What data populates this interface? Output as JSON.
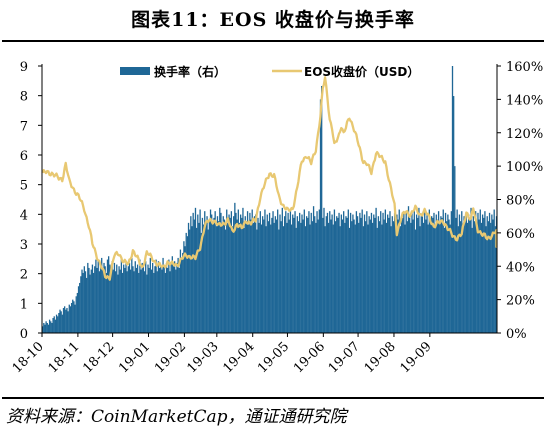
{
  "title": "图表11：EOS 收盘价与换手率",
  "source": "资料来源：CoinMarketCap，通证通研究院",
  "chart_data": {
    "type": "bar+line",
    "title": "图表11：EOS 收盘价与换手率",
    "x_tick_labels": [
      "18-10",
      "18-11",
      "18-12",
      "19-01",
      "19-02",
      "19-03",
      "19-04",
      "19-05",
      "19-06",
      "19-07",
      "19-08",
      "19-09"
    ],
    "left_axis": {
      "ticks": [
        "0",
        "1",
        "2",
        "3",
        "4",
        "5",
        "6",
        "7",
        "8",
        "9"
      ],
      "ylim": [
        0,
        9
      ]
    },
    "right_axis": {
      "ticks": [
        "0%",
        "20%",
        "40%",
        "60%",
        "80%",
        "100%",
        "120%",
        "140%",
        "160%"
      ],
      "ylim": [
        0,
        160
      ]
    },
    "legend_position": "top",
    "grid": false,
    "series": [
      {
        "name": "换手率（右）",
        "type": "bar",
        "axis": "right",
        "color": "#1f6796",
        "unit": "%",
        "monthly_start_index": [
          0,
          31,
          61,
          92,
          123,
          151,
          182,
          212,
          243,
          273,
          304,
          335
        ],
        "values": [
          4,
          6,
          5,
          7,
          6,
          5,
          8,
          7,
          6,
          9,
          10,
          8,
          11,
          10,
          12,
          14,
          13,
          11,
          15,
          16,
          14,
          15,
          13,
          17,
          16,
          18,
          20,
          19,
          17,
          22,
          24,
          28,
          30,
          34,
          38,
          36,
          40,
          37,
          33,
          42,
          39,
          35,
          38,
          41,
          36,
          40,
          44,
          39,
          43,
          37,
          41,
          45,
          38,
          42,
          40,
          36,
          44,
          46,
          41,
          39,
          43,
          38,
          42,
          37,
          41,
          35,
          40,
          38,
          44,
          36,
          41,
          39,
          43,
          37,
          40,
          42,
          38,
          45,
          40,
          37,
          43,
          39,
          41,
          36,
          44,
          38,
          42,
          40,
          37,
          43,
          35,
          41,
          39,
          45,
          38,
          42,
          36,
          40,
          44,
          37,
          43,
          39,
          41,
          38,
          45,
          40,
          36,
          42,
          39,
          44,
          37,
          41,
          46,
          40,
          43,
          38,
          42,
          45,
          39,
          50,
          44,
          48,
          55,
          52,
          60,
          58,
          66,
          62,
          70,
          64,
          72,
          68,
          75,
          63,
          71,
          66,
          74,
          60,
          69,
          65,
          73,
          67,
          70,
          62,
          68,
          74,
          71,
          66,
          69,
          73,
          64,
          70,
          67,
          75,
          72,
          65,
          70,
          68,
          62,
          74,
          66,
          71,
          69,
          73,
          64,
          70,
          78,
          72,
          68,
          74,
          66,
          71,
          69,
          75,
          63,
          70,
          67,
          73,
          65,
          72,
          68,
          74,
          66,
          70,
          71,
          62,
          69,
          66,
          73,
          65,
          70,
          68,
          74,
          64,
          71,
          67,
          72,
          65,
          69,
          73,
          66,
          70,
          68,
          74,
          62,
          71,
          67,
          75,
          64,
          70,
          73,
          66,
          72,
          68,
          74,
          65,
          71,
          69,
          73,
          63,
          70,
          67,
          72,
          66,
          71,
          68,
          74,
          64,
          70,
          69,
          73,
          65,
          72,
          67,
          76,
          70,
          66,
          73,
          68,
          74,
          62,
          71,
          69,
          75,
          64,
          70,
          72,
          66,
          73,
          68,
          71,
          65,
          74,
          67,
          70,
          69,
          72,
          64,
          71,
          68,
          73,
          66,
          70,
          69,
          74,
          63,
          72,
          67,
          71,
          68,
          65,
          73,
          70,
          66,
          72,
          69,
          74,
          64,
          71,
          67,
          73,
          65,
          70,
          68,
          72,
          66,
          71,
          69,
          75,
          63,
          70,
          67,
          73,
          65,
          72,
          68,
          74,
          66,
          71,
          69,
          73,
          64,
          70,
          67,
          72,
          66,
          71,
          68,
          74,
          64,
          70,
          69,
          73,
          65,
          72,
          67,
          76,
          70,
          66,
          73,
          68,
          74,
          62,
          71,
          69,
          75,
          64,
          70,
          72,
          66,
          73,
          68,
          71,
          65,
          74,
          67,
          70,
          69,
          72,
          64,
          71,
          68,
          73,
          66,
          70,
          69,
          74,
          63,
          72,
          67,
          71,
          68,
          65,
          73,
          70,
          66,
          72,
          69,
          74,
          64,
          71,
          67,
          73,
          65,
          70,
          68,
          72,
          66,
          71,
          69,
          75,
          63,
          70,
          67,
          73,
          65,
          72,
          68,
          74,
          66,
          71,
          69,
          73,
          64,
          70,
          67,
          72,
          66,
          71,
          68,
          74,
          64,
          70
        ]
      },
      {
        "name": "EOS收盘价（USD）",
        "type": "line",
        "axis": "left",
        "color": "#e8c872",
        "unit": "USD",
        "anchors": [
          [
            0,
            5.4
          ],
          [
            8,
            5.4
          ],
          [
            14,
            5.2
          ],
          [
            17,
            5.2
          ],
          [
            20,
            5.7
          ],
          [
            23,
            5.1
          ],
          [
            28,
            4.8
          ],
          [
            31,
            4.6
          ],
          [
            36,
            4.2
          ],
          [
            40,
            3.6
          ],
          [
            43,
            3.0
          ],
          [
            46,
            2.7
          ],
          [
            50,
            2.3
          ],
          [
            54,
            1.9
          ],
          [
            58,
            1.9
          ],
          [
            62,
            2.6
          ],
          [
            66,
            2.7
          ],
          [
            70,
            2.4
          ],
          [
            74,
            2.3
          ],
          [
            78,
            2.8
          ],
          [
            82,
            2.5
          ],
          [
            86,
            2.2
          ],
          [
            90,
            2.7
          ],
          [
            95,
            2.5
          ],
          [
            100,
            2.3
          ],
          [
            104,
            2.2
          ],
          [
            108,
            2.4
          ],
          [
            112,
            2.3
          ],
          [
            116,
            2.3
          ],
          [
            120,
            2.5
          ],
          [
            124,
            2.6
          ],
          [
            128,
            2.6
          ],
          [
            132,
            2.5
          ],
          [
            136,
            2.9
          ],
          [
            140,
            3.6
          ],
          [
            144,
            3.8
          ],
          [
            148,
            3.8
          ],
          [
            152,
            3.6
          ],
          [
            156,
            3.7
          ],
          [
            160,
            3.8
          ],
          [
            164,
            3.4
          ],
          [
            168,
            3.7
          ],
          [
            172,
            3.5
          ],
          [
            176,
            3.8
          ],
          [
            180,
            3.7
          ],
          [
            184,
            3.8
          ],
          [
            188,
            4.6
          ],
          [
            192,
            5.0
          ],
          [
            196,
            5.4
          ],
          [
            200,
            5.3
          ],
          [
            204,
            4.6
          ],
          [
            208,
            4.3
          ],
          [
            212,
            4.1
          ],
          [
            216,
            4.2
          ],
          [
            220,
            4.9
          ],
          [
            224,
            5.8
          ],
          [
            228,
            6.0
          ],
          [
            232,
            5.7
          ],
          [
            236,
            6.2
          ],
          [
            240,
            7.3
          ],
          [
            242,
            8.2
          ],
          [
            244,
            8.6
          ],
          [
            246,
            8.0
          ],
          [
            248,
            7.2
          ],
          [
            250,
            6.9
          ],
          [
            252,
            6.3
          ],
          [
            256,
            6.7
          ],
          [
            258,
            7.0
          ],
          [
            260,
            6.7
          ],
          [
            262,
            6.9
          ],
          [
            265,
            7.3
          ],
          [
            268,
            7.0
          ],
          [
            271,
            6.6
          ],
          [
            274,
            6.2
          ],
          [
            277,
            5.8
          ],
          [
            280,
            5.7
          ],
          [
            284,
            5.4
          ],
          [
            288,
            6.1
          ],
          [
            292,
            5.9
          ],
          [
            296,
            5.8
          ],
          [
            300,
            5.0
          ],
          [
            304,
            4.3
          ],
          [
            306,
            3.4
          ],
          [
            310,
            3.9
          ],
          [
            314,
            4.1
          ],
          [
            318,
            4.0
          ],
          [
            322,
            4.2
          ],
          [
            326,
            4.0
          ],
          [
            330,
            4.1
          ],
          [
            334,
            3.9
          ],
          [
            338,
            3.6
          ],
          [
            342,
            3.7
          ],
          [
            346,
            3.8
          ],
          [
            350,
            3.5
          ],
          [
            354,
            3.3
          ],
          [
            358,
            3.2
          ],
          [
            362,
            3.3
          ],
          [
            366,
            4.1
          ],
          [
            370,
            3.8
          ],
          [
            372,
            4.2
          ],
          [
            374,
            3.8
          ],
          [
            376,
            3.5
          ],
          [
            380,
            3.3
          ],
          [
            384,
            3.2
          ],
          [
            388,
            3.3
          ],
          [
            392,
            3.4
          ],
          [
            396,
            3.1
          ],
          [
            400,
            3.2
          ],
          [
            404,
            3.0
          ],
          [
            408,
            3.0
          ]
        ]
      }
    ],
    "spikes": [
      [
        240,
        130
      ],
      [
        240,
        140
      ],
      [
        241,
        148
      ],
      [
        354,
        160
      ],
      [
        355,
        142
      ],
      [
        356,
        100
      ]
    ]
  }
}
